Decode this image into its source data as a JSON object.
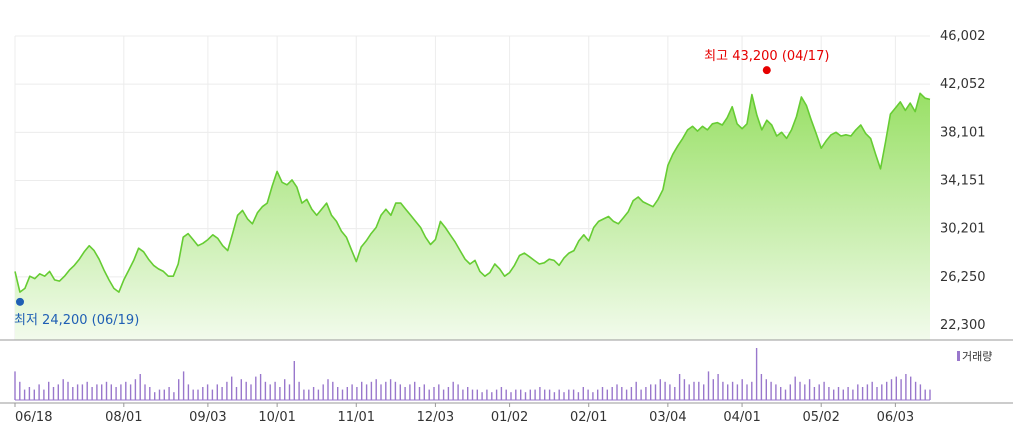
{
  "chart_data": [
    {
      "type": "area",
      "title": "",
      "xlabel": "",
      "ylabel": "",
      "ylim": [
        22300,
        46002
      ],
      "y_ticks": [
        "46,002",
        "42,052",
        "38,101",
        "34,151",
        "30,201",
        "26,250",
        "22,300"
      ],
      "y_tick_values": [
        46002,
        42052,
        38101,
        34151,
        30201,
        26250,
        22300
      ],
      "x_tick_labels": [
        "06/18",
        "08/01",
        "09/03",
        "10/01",
        "11/01",
        "12/03",
        "01/02",
        "02/01",
        "03/04",
        "04/01",
        "05/02",
        "06/03"
      ],
      "grid": true,
      "colors": {
        "line": "#66cc33",
        "fill_top": "#99e066",
        "fill_bottom": "#f2fbec",
        "grid": "#ececec",
        "axis": "#999999"
      },
      "series": [
        {
          "values": [
            26700,
            25000,
            25300,
            26300,
            26100,
            26500,
            26300,
            26700,
            26000,
            25900,
            26300,
            26800,
            27200,
            27700,
            28300,
            28800,
            28400,
            27700,
            26800,
            26000,
            25300,
            25000,
            26000,
            26800,
            27600,
            28600,
            28300,
            27700,
            27200,
            26900,
            26700,
            26300,
            26300,
            27300,
            29500,
            29800,
            29300,
            28800,
            29000,
            29300,
            29700,
            29400,
            28800,
            28400,
            29800,
            31300,
            31700,
            31000,
            30600,
            31500,
            32000,
            32300,
            33700,
            34900,
            34000,
            33800,
            34200,
            33600,
            32300,
            32600,
            31800,
            31300,
            31800,
            32300,
            31300,
            30800,
            30000,
            29500,
            28500,
            27500,
            28700,
            29200,
            29800,
            30300,
            31300,
            31800,
            31300,
            32300,
            32300,
            31800,
            31300,
            30800,
            30300,
            29500,
            28900,
            29300,
            30800,
            30300,
            29700,
            29100,
            28400,
            27700,
            27300,
            27600,
            26700,
            26300,
            26600,
            27300,
            26900,
            26300,
            26600,
            27200,
            28000,
            28200,
            27900,
            27600,
            27300,
            27400,
            27700,
            27600,
            27200,
            27800,
            28200,
            28400,
            29200,
            29700,
            29200,
            30300,
            30800,
            31000,
            31200,
            30800,
            30600,
            31100,
            31600,
            32500,
            32800,
            32400,
            32200,
            32000,
            32600,
            33400,
            35400,
            36300,
            37000,
            37600,
            38300,
            38600,
            38200,
            38600,
            38300,
            38800,
            38900,
            38700,
            39300,
            40200,
            38800,
            38400,
            38800,
            41200,
            39500,
            38300,
            39100,
            38700,
            37800,
            38100,
            37600,
            38300,
            39400,
            41000,
            40300,
            39100,
            38000,
            36800,
            37400,
            37900,
            38100,
            37800,
            37900,
            37800,
            38300,
            38700,
            38000,
            37600,
            36300,
            35100,
            37300,
            39600,
            40100,
            40600,
            39900,
            40500,
            39800,
            41300,
            40900,
            40800
          ]
        }
      ],
      "annotations": {
        "high": {
          "text": "최고 43,200 (04/17)",
          "value": 43200
        },
        "low": {
          "text": "최저 24,200 (06/19)",
          "value": 24200
        }
      }
    },
    {
      "type": "bar",
      "title": "",
      "legend": "거래량",
      "colors": {
        "bar": "#9977cc",
        "legend_swatch": "#9977cc"
      },
      "series": [
        {
          "values": [
            0.55,
            0.35,
            0.2,
            0.25,
            0.2,
            0.3,
            0.2,
            0.35,
            0.25,
            0.3,
            0.4,
            0.35,
            0.25,
            0.3,
            0.3,
            0.35,
            0.25,
            0.3,
            0.3,
            0.35,
            0.3,
            0.25,
            0.3,
            0.35,
            0.3,
            0.4,
            0.5,
            0.3,
            0.25,
            0.15,
            0.2,
            0.2,
            0.25,
            0.15,
            0.4,
            0.55,
            0.3,
            0.2,
            0.2,
            0.25,
            0.3,
            0.2,
            0.3,
            0.25,
            0.35,
            0.45,
            0.25,
            0.4,
            0.35,
            0.3,
            0.45,
            0.5,
            0.35,
            0.3,
            0.35,
            0.25,
            0.4,
            0.3,
            0.75,
            0.35,
            0.2,
            0.2,
            0.25,
            0.2,
            0.3,
            0.4,
            0.35,
            0.25,
            0.2,
            0.25,
            0.3,
            0.25,
            0.35,
            0.3,
            0.35,
            0.4,
            0.3,
            0.35,
            0.4,
            0.35,
            0.3,
            0.25,
            0.3,
            0.35,
            0.25,
            0.3,
            0.2,
            0.25,
            0.3,
            0.2,
            0.25,
            0.35,
            0.3,
            0.2,
            0.25,
            0.2,
            0.2,
            0.15,
            0.2,
            0.15,
            0.2,
            0.25,
            0.2,
            0.15,
            0.2,
            0.2,
            0.15,
            0.2,
            0.2,
            0.25,
            0.2,
            0.2,
            0.15,
            0.2,
            0.15,
            0.2,
            0.2,
            0.15,
            0.25,
            0.2,
            0.15,
            0.2,
            0.25,
            0.2,
            0.25,
            0.3,
            0.25,
            0.2,
            0.25,
            0.35,
            0.2,
            0.25,
            0.3,
            0.3,
            0.4,
            0.35,
            0.3,
            0.25,
            0.5,
            0.4,
            0.3,
            0.35,
            0.35,
            0.3,
            0.55,
            0.4,
            0.5,
            0.35,
            0.3,
            0.35,
            0.3,
            0.4,
            0.3,
            0.35,
            1.0,
            0.5,
            0.4,
            0.35,
            0.3,
            0.25,
            0.2,
            0.3,
            0.45,
            0.35,
            0.3,
            0.4,
            0.25,
            0.3,
            0.35,
            0.25,
            0.2,
            0.25,
            0.2,
            0.25,
            0.2,
            0.3,
            0.25,
            0.3,
            0.35,
            0.25,
            0.3,
            0.35,
            0.4,
            0.45,
            0.4,
            0.5,
            0.45,
            0.35,
            0.3,
            0.2,
            0.2
          ]
        }
      ]
    }
  ]
}
